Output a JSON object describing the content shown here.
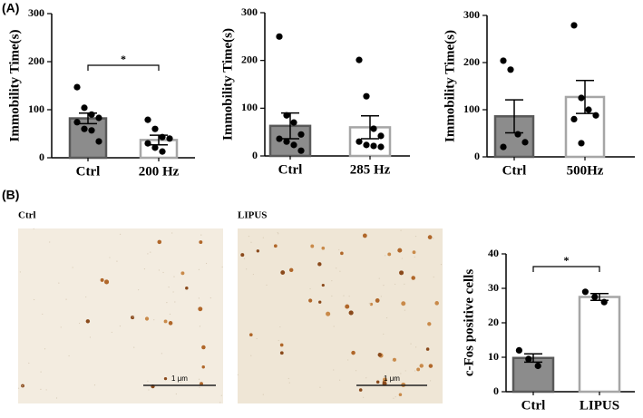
{
  "panel_labels": [
    "(A)",
    "(B)"
  ],
  "images": [
    {
      "label": "Ctrl",
      "scale_bar": "1 μm"
    },
    {
      "label": "LIPUS",
      "scale_bar": "1 μm"
    }
  ],
  "chart_data": [
    {
      "type": "bar",
      "ylabel": "Immobility Time(s)",
      "categories": [
        "Ctrl",
        "200 Hz"
      ],
      "values": [
        82,
        37
      ],
      "errors": [
        11,
        10
      ],
      "colors": [
        "#8c8c8c",
        "#ffffff"
      ],
      "edge_colors": [
        "#595959",
        "#a6a6a6"
      ],
      "points": [
        [
          147,
          104,
          90,
          83,
          74,
          60,
          57,
          34
        ],
        [
          79,
          60,
          43,
          40,
          30,
          21,
          13
        ]
      ],
      "significance": "*",
      "ylim": [
        0,
        300
      ],
      "yticks": [
        0,
        100,
        200,
        300
      ]
    },
    {
      "type": "bar",
      "ylabel": "Immobility Time(s)",
      "categories": [
        "Ctrl",
        "285 Hz"
      ],
      "values": [
        63,
        60
      ],
      "errors": [
        27,
        24
      ],
      "colors": [
        "#8c8c8c",
        "#ffffff"
      ],
      "edge_colors": [
        "#595959",
        "#a6a6a6"
      ],
      "points": [
        [
          250,
          85,
          70,
          45,
          36,
          30,
          23,
          11
        ],
        [
          201,
          125,
          57,
          42,
          30,
          23,
          21,
          19
        ]
      ],
      "ylim": [
        0,
        300
      ],
      "yticks": [
        0,
        100,
        200,
        300
      ]
    },
    {
      "type": "bar",
      "ylabel": "Immobility Time(s)",
      "categories": [
        "Ctrl",
        "500Hz"
      ],
      "values": [
        86,
        127
      ],
      "errors": [
        35,
        35
      ],
      "colors": [
        "#8c8c8c",
        "#ffffff"
      ],
      "edge_colors": [
        "#595959",
        "#a6a6a6"
      ],
      "points": [
        [
          204,
          185,
          48,
          31,
          21
        ],
        [
          279,
          125,
          100,
          88,
          80,
          29
        ]
      ],
      "ylim": [
        0,
        300
      ],
      "yticks": [
        0,
        100,
        200,
        300
      ]
    },
    {
      "type": "bar",
      "ylabel": "c-Fos positive cells",
      "categories": [
        "Ctrl",
        "LIPUS"
      ],
      "values": [
        9.8,
        27.5
      ],
      "errors": [
        1.2,
        1.0
      ],
      "colors": [
        "#8c8c8c",
        "#ffffff"
      ],
      "edge_colors": [
        "#595959",
        "#a6a6a6"
      ],
      "points": [
        [
          12,
          9.5,
          7.5
        ],
        [
          29,
          27.5,
          26
        ]
      ],
      "significance": "*",
      "ylim": [
        0,
        40
      ],
      "yticks": [
        0,
        10,
        20,
        30,
        40
      ]
    }
  ]
}
